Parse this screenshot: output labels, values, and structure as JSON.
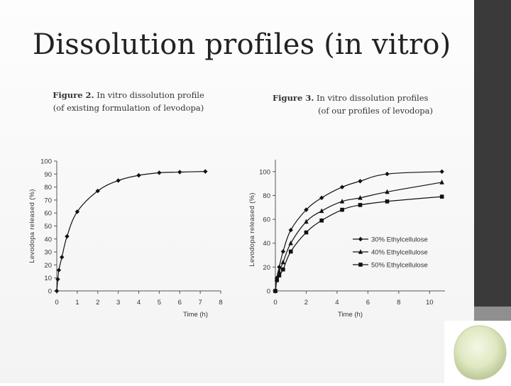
{
  "slide": {
    "title": "Dissolution profiles (in vitro)"
  },
  "fig2_caption": {
    "label": "Figure 2.",
    "line1_rest": " In vitro dissolution profile",
    "line2": "(of existing formulation of levodopa)"
  },
  "fig3_caption": {
    "label": "Figure 3.",
    "line1_rest": " In vitro dissolution profiles",
    "line2": "(of our profiles of levodopa)"
  },
  "colors": {
    "band": "#3a3a3a",
    "band_light": "#8f8f8f",
    "line": "#111111",
    "tablet": "#dfe8c2"
  },
  "chart_data": [
    {
      "type": "line",
      "xlabel": "Time (h)",
      "ylabel": "Levodopa released (%)",
      "xlim": [
        0,
        8
      ],
      "ylim": [
        0,
        100
      ],
      "xticks": [
        0,
        1,
        2,
        3,
        4,
        5,
        6,
        7,
        8
      ],
      "yticks": [
        0,
        10,
        20,
        30,
        40,
        50,
        60,
        70,
        80,
        90,
        100
      ],
      "grid": false,
      "series": [
        {
          "marker": "diamond",
          "x": [
            0,
            0.05,
            0.1,
            0.25,
            0.5,
            1,
            2,
            3,
            4,
            5,
            6,
            7.25
          ],
          "y": [
            0,
            9,
            16,
            26,
            42,
            61,
            77,
            85,
            89,
            91,
            91.5,
            92
          ]
        }
      ]
    },
    {
      "type": "line",
      "xlabel": "Time (h)",
      "ylabel": "Levodopa released (%)",
      "xlim": [
        0,
        11
      ],
      "ylim": [
        0,
        110
      ],
      "xticks": [
        0,
        2,
        4,
        6,
        8,
        10
      ],
      "yticks": [
        0,
        20,
        40,
        60,
        80,
        100
      ],
      "grid": false,
      "legend_position": "inside-right",
      "series": [
        {
          "name": "30% Ethylcellulose",
          "marker": "diamond",
          "x": [
            0,
            0.1,
            0.25,
            0.5,
            1,
            2,
            3,
            4.33,
            5.5,
            7.25,
            10.8
          ],
          "y": [
            0,
            11,
            20,
            33,
            51,
            68,
            78,
            87,
            92,
            98,
            100
          ]
        },
        {
          "name": "40% Ethylcellulose",
          "marker": "triangle",
          "x": [
            0,
            0.1,
            0.25,
            0.5,
            1,
            2,
            3,
            4.33,
            5.5,
            7.25,
            10.8
          ],
          "y": [
            0,
            10,
            16,
            24,
            40,
            58,
            67,
            75,
            78,
            83,
            91
          ]
        },
        {
          "name": "50% Ethylcellulose",
          "marker": "square",
          "x": [
            0,
            0.1,
            0.25,
            0.5,
            1,
            2,
            3,
            4.33,
            5.5,
            7.25,
            10.8
          ],
          "y": [
            0,
            9,
            13,
            18,
            33,
            49,
            59,
            68,
            72,
            75,
            79
          ]
        }
      ]
    }
  ]
}
